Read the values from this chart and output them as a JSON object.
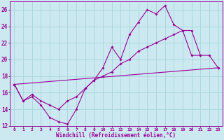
{
  "xlabel": "Windchill (Refroidissement éolien,°C)",
  "bg_color": "#cce8f0",
  "line_color": "#990099",
  "grid_color": "#aad8e0",
  "xlim": [
    -0.5,
    23.5
  ],
  "ylim": [
    12,
    27
  ],
  "yticks": [
    12,
    14,
    16,
    18,
    20,
    22,
    24,
    26
  ],
  "xticks": [
    0,
    1,
    2,
    3,
    4,
    5,
    6,
    7,
    8,
    9,
    10,
    11,
    12,
    13,
    14,
    15,
    16,
    17,
    18,
    19,
    20,
    21,
    22,
    23
  ],
  "line1_x": [
    0,
    1,
    2,
    3,
    4,
    5,
    6,
    7,
    8,
    9,
    10,
    11,
    12,
    13,
    14,
    15,
    16,
    17,
    18,
    19,
    20,
    21
  ],
  "line1_y": [
    17.0,
    15.0,
    15.5,
    14.5,
    13.0,
    12.5,
    12.2,
    14.0,
    16.5,
    17.5,
    19.0,
    21.5,
    20.0,
    23.0,
    24.5,
    26.0,
    25.5,
    26.5,
    24.2,
    23.5,
    20.5,
    20.5
  ],
  "line2_x": [
    0,
    1,
    2,
    3,
    4,
    5,
    6,
    7,
    8,
    9,
    10,
    11,
    12,
    13,
    14,
    15,
    16,
    17,
    18,
    19,
    20,
    21,
    22,
    23
  ],
  "line2_y": [
    17.0,
    15.0,
    15.8,
    15.0,
    14.5,
    14.0,
    15.0,
    15.5,
    16.5,
    17.5,
    18.0,
    18.5,
    19.5,
    20.0,
    21.0,
    21.5,
    22.0,
    22.5,
    23.0,
    23.5,
    23.5,
    20.5,
    20.5,
    19.0
  ],
  "line3_x": [
    0,
    23
  ],
  "line3_y": [
    17.0,
    19.0
  ]
}
